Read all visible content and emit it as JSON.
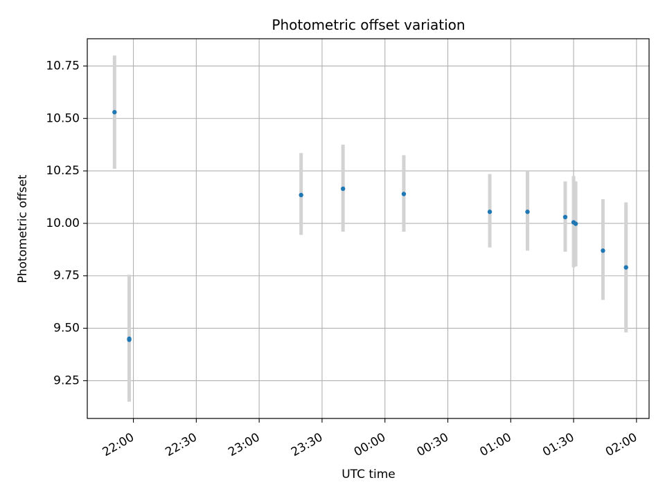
{
  "chart_data": {
    "type": "scatter",
    "title": "Photometric offset variation",
    "xlabel": "UTC time",
    "ylabel": "Photometric offset",
    "x_axis_kind": "time",
    "xlim": [
      "21:38",
      "02:06"
    ],
    "ylim": [
      9.07,
      10.88
    ],
    "grid": true,
    "x_ticks": [
      {
        "time": "22:00",
        "label": "22:00"
      },
      {
        "time": "22:30",
        "label": "22:30"
      },
      {
        "time": "23:00",
        "label": "23:00"
      },
      {
        "time": "23:30",
        "label": "23:30"
      },
      {
        "time": "00:00",
        "label": "00:00"
      },
      {
        "time": "00:30",
        "label": "00:30"
      },
      {
        "time": "01:00",
        "label": "01:00"
      },
      {
        "time": "01:30",
        "label": "01:30"
      },
      {
        "time": "02:00",
        "label": "02:00"
      }
    ],
    "y_ticks": [
      {
        "value": 9.25,
        "label": "9.25"
      },
      {
        "value": 9.5,
        "label": "9.50"
      },
      {
        "value": 9.75,
        "label": "9.75"
      },
      {
        "value": 10.0,
        "label": "10.00"
      },
      {
        "value": 10.25,
        "label": "10.25"
      },
      {
        "value": 10.5,
        "label": "10.50"
      },
      {
        "value": 10.75,
        "label": "10.75"
      }
    ],
    "points": [
      {
        "time": "21:51",
        "y": 10.53,
        "ylow": 10.26,
        "yhigh": 10.8
      },
      {
        "time": "21:58",
        "y": 9.445,
        "ylow": 9.15,
        "yhigh": 9.755
      },
      {
        "time": "21:58",
        "y": 9.45,
        "ylow": 9.17,
        "yhigh": 9.72
      },
      {
        "time": "23:20",
        "y": 10.135,
        "ylow": 9.945,
        "yhigh": 10.335
      },
      {
        "time": "23:40",
        "y": 10.165,
        "ylow": 9.96,
        "yhigh": 10.375
      },
      {
        "time": "00:09",
        "y": 10.14,
        "ylow": 9.96,
        "yhigh": 10.325
      },
      {
        "time": "00:50",
        "y": 10.055,
        "ylow": 9.885,
        "yhigh": 10.235
      },
      {
        "time": "01:08",
        "y": 10.055,
        "ylow": 9.87,
        "yhigh": 10.25
      },
      {
        "time": "01:26",
        "y": 10.03,
        "ylow": 9.865,
        "yhigh": 10.2
      },
      {
        "time": "01:30",
        "y": 10.005,
        "ylow": 9.79,
        "yhigh": 10.225
      },
      {
        "time": "01:31",
        "y": 9.998,
        "ylow": 9.795,
        "yhigh": 10.2
      },
      {
        "time": "01:44",
        "y": 9.87,
        "ylow": 9.635,
        "yhigh": 10.115
      },
      {
        "time": "01:55",
        "y": 9.79,
        "ylow": 9.48,
        "yhigh": 10.1
      }
    ],
    "colors": {
      "marker": "#1f77b4",
      "errorbar": "#d3d3d3",
      "grid": "#b0b0b0",
      "axis": "#000000"
    }
  }
}
